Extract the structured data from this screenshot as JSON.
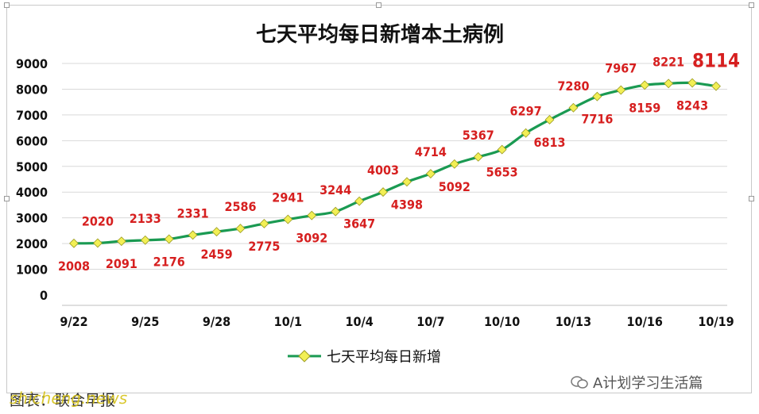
{
  "chart_data": {
    "type": "line",
    "title": "七天平均每日新增本土病例",
    "x": [
      "9/22",
      "9/23",
      "9/24",
      "9/25",
      "9/26",
      "9/27",
      "9/28",
      "9/29",
      "9/30",
      "10/1",
      "10/2",
      "10/3",
      "10/4",
      "10/5",
      "10/6",
      "10/7",
      "10/8",
      "10/9",
      "10/10",
      "10/11",
      "10/12",
      "10/13",
      "10/14",
      "10/15",
      "10/16",
      "10/17",
      "10/18",
      "10/19"
    ],
    "x_tick_labels": [
      "9/22",
      "9/25",
      "9/28",
      "10/1",
      "10/4",
      "10/7",
      "10/10",
      "10/13",
      "10/16",
      "10/19"
    ],
    "series": [
      {
        "name": "七天平均每日新增",
        "values": [
          2008,
          2020,
          2091,
          2133,
          2176,
          2331,
          2459,
          2586,
          2775,
          2941,
          3092,
          3244,
          3647,
          4003,
          4398,
          4714,
          5092,
          5367,
          5653,
          6297,
          6813,
          7280,
          7716,
          7967,
          8159,
          8221,
          8243,
          8114
        ],
        "color": "#1a9a52",
        "marker_color": "#f2ef55"
      }
    ],
    "ylim": [
      0,
      9000
    ],
    "yticks": [
      0,
      1000,
      2000,
      3000,
      4000,
      5000,
      6000,
      7000,
      8000,
      9000
    ],
    "grid": true,
    "legend_position": "bottom",
    "label_color": "#d61f1f",
    "highlight_label": "8114"
  },
  "footer": {
    "source_text": "图表：联合早报",
    "watermark_text": "shicheng.news",
    "wechat_text": "A计划学习生活篇"
  }
}
